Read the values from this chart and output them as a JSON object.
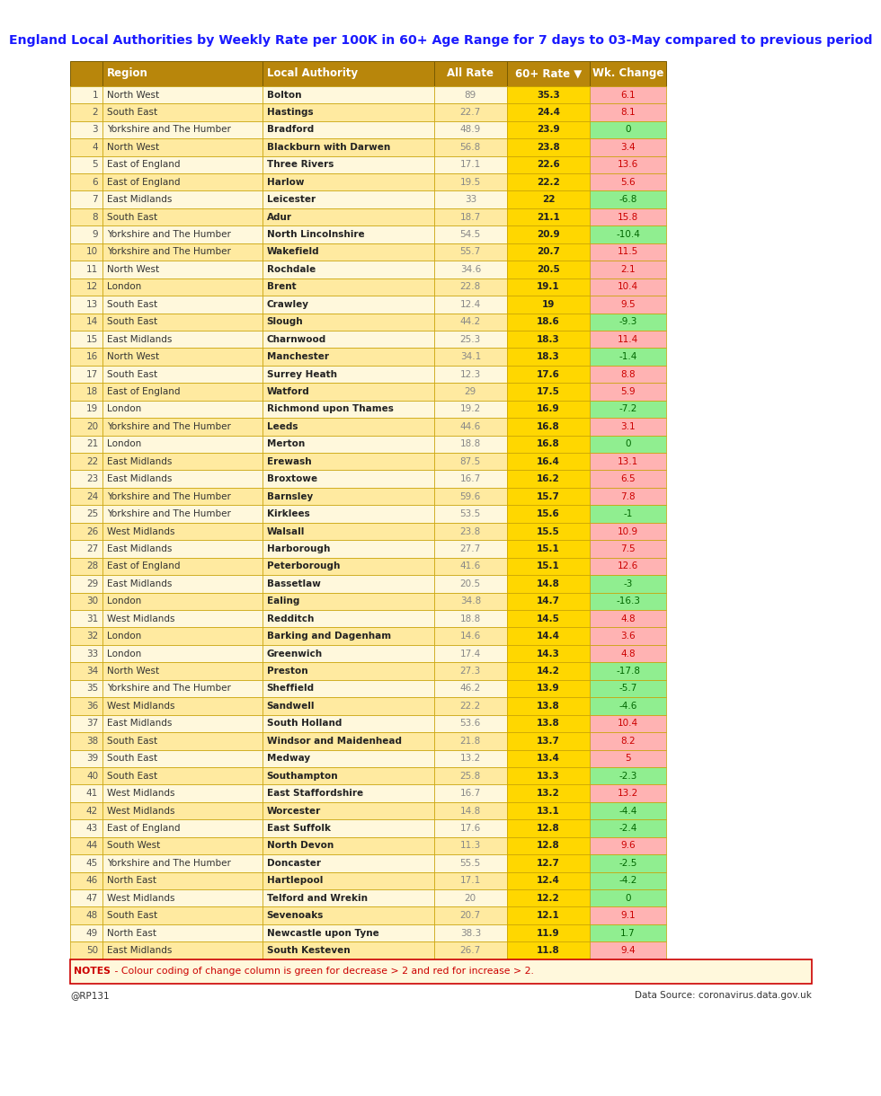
{
  "title": "England Local Authorities by Weekly Rate per 100K in 60+ Age Range for 7 days to 03-May compared to previous period",
  "header": [
    "Region",
    "Local Authority",
    "All Rate",
    "60+ Rate ▼",
    "Wk. Change"
  ],
  "rows": [
    [
      1,
      "North West",
      "Bolton",
      89,
      35.3,
      6.1
    ],
    [
      2,
      "South East",
      "Hastings",
      22.7,
      24.4,
      8.1
    ],
    [
      3,
      "Yorkshire and The Humber",
      "Bradford",
      48.9,
      23.9,
      0
    ],
    [
      4,
      "North West",
      "Blackburn with Darwen",
      56.8,
      23.8,
      3.4
    ],
    [
      5,
      "East of England",
      "Three Rivers",
      17.1,
      22.6,
      13.6
    ],
    [
      6,
      "East of England",
      "Harlow",
      19.5,
      22.2,
      5.6
    ],
    [
      7,
      "East Midlands",
      "Leicester",
      33,
      22,
      -6.8
    ],
    [
      8,
      "South East",
      "Adur",
      18.7,
      21.1,
      15.8
    ],
    [
      9,
      "Yorkshire and The Humber",
      "North Lincolnshire",
      54.5,
      20.9,
      -10.4
    ],
    [
      10,
      "Yorkshire and The Humber",
      "Wakefield",
      55.7,
      20.7,
      11.5
    ],
    [
      11,
      "North West",
      "Rochdale",
      34.6,
      20.5,
      2.1
    ],
    [
      12,
      "London",
      "Brent",
      22.8,
      19.1,
      10.4
    ],
    [
      13,
      "South East",
      "Crawley",
      12.4,
      19,
      9.5
    ],
    [
      14,
      "South East",
      "Slough",
      44.2,
      18.6,
      -9.3
    ],
    [
      15,
      "East Midlands",
      "Charnwood",
      25.3,
      18.3,
      11.4
    ],
    [
      16,
      "North West",
      "Manchester",
      34.1,
      18.3,
      -1.4
    ],
    [
      17,
      "South East",
      "Surrey Heath",
      12.3,
      17.6,
      8.8
    ],
    [
      18,
      "East of England",
      "Watford",
      29,
      17.5,
      5.9
    ],
    [
      19,
      "London",
      "Richmond upon Thames",
      19.2,
      16.9,
      -7.2
    ],
    [
      20,
      "Yorkshire and The Humber",
      "Leeds",
      44.6,
      16.8,
      3.1
    ],
    [
      21,
      "London",
      "Merton",
      18.8,
      16.8,
      0
    ],
    [
      22,
      "East Midlands",
      "Erewash",
      87.5,
      16.4,
      13.1
    ],
    [
      23,
      "East Midlands",
      "Broxtowe",
      16.7,
      16.2,
      6.5
    ],
    [
      24,
      "Yorkshire and The Humber",
      "Barnsley",
      59.6,
      15.7,
      7.8
    ],
    [
      25,
      "Yorkshire and The Humber",
      "Kirklees",
      53.5,
      15.6,
      -1
    ],
    [
      26,
      "West Midlands",
      "Walsall",
      23.8,
      15.5,
      10.9
    ],
    [
      27,
      "East Midlands",
      "Harborough",
      27.7,
      15.1,
      7.5
    ],
    [
      28,
      "East of England",
      "Peterborough",
      41.6,
      15.1,
      12.6
    ],
    [
      29,
      "East Midlands",
      "Bassetlaw",
      20.5,
      14.8,
      -3
    ],
    [
      30,
      "London",
      "Ealing",
      34.8,
      14.7,
      -16.3
    ],
    [
      31,
      "West Midlands",
      "Redditch",
      18.8,
      14.5,
      4.8
    ],
    [
      32,
      "London",
      "Barking and Dagenham",
      14.6,
      14.4,
      3.6
    ],
    [
      33,
      "London",
      "Greenwich",
      17.4,
      14.3,
      4.8
    ],
    [
      34,
      "North West",
      "Preston",
      27.3,
      14.2,
      -17.8
    ],
    [
      35,
      "Yorkshire and The Humber",
      "Sheffield",
      46.2,
      13.9,
      -5.7
    ],
    [
      36,
      "West Midlands",
      "Sandwell",
      22.2,
      13.8,
      -4.6
    ],
    [
      37,
      "East Midlands",
      "South Holland",
      53.6,
      13.8,
      10.4
    ],
    [
      38,
      "South East",
      "Windsor and Maidenhead",
      21.8,
      13.7,
      8.2
    ],
    [
      39,
      "South East",
      "Medway",
      13.2,
      13.4,
      5
    ],
    [
      40,
      "South East",
      "Southampton",
      25.8,
      13.3,
      -2.3
    ],
    [
      41,
      "West Midlands",
      "East Staffordshire",
      16.7,
      13.2,
      13.2
    ],
    [
      42,
      "West Midlands",
      "Worcester",
      14.8,
      13.1,
      -4.4
    ],
    [
      43,
      "East of England",
      "East Suffolk",
      17.6,
      12.8,
      -2.4
    ],
    [
      44,
      "South West",
      "North Devon",
      11.3,
      12.8,
      9.6
    ],
    [
      45,
      "Yorkshire and The Humber",
      "Doncaster",
      55.5,
      12.7,
      -2.5
    ],
    [
      46,
      "North East",
      "Hartlepool",
      17.1,
      12.4,
      -4.2
    ],
    [
      47,
      "West Midlands",
      "Telford and Wrekin",
      20,
      12.2,
      0
    ],
    [
      48,
      "South East",
      "Sevenoaks",
      20.7,
      12.1,
      9.1
    ],
    [
      49,
      "North East",
      "Newcastle upon Tyne",
      38.3,
      11.9,
      1.7
    ],
    [
      50,
      "East Midlands",
      "South Kesteven",
      26.7,
      11.8,
      9.4
    ]
  ],
  "title_color": "#1a1aff",
  "header_bg": "#b8860b",
  "header_text_color": "#ffffff",
  "row_bg_odd": "#fff8dc",
  "row_bg_even": "#ffeaa0",
  "rate_col_bg": "#ffd700",
  "change_red_bg": "#ffb3b3",
  "change_green_bg": "#90ee90",
  "notes_text": "NOTES   - Colour coding of change column is green for decrease > 2 and red for increase > 2.",
  "footer_left": "@RP131",
  "footer_right": "Data Source: coronavirus.data.gov.uk",
  "border_color": "#c8a000"
}
